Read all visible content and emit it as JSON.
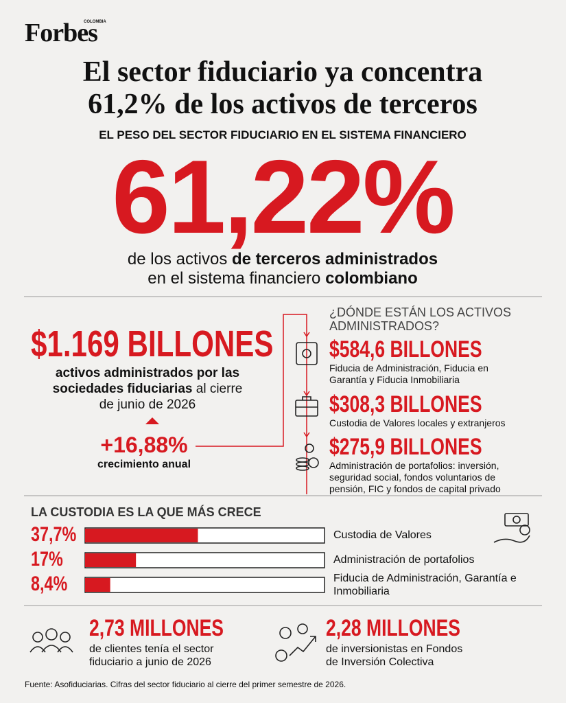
{
  "header": {
    "brand": "Forbes",
    "edition": "COLOMBIA",
    "title_lines": [
      "El sector fiduciario ya concentra",
      "61,2% de los activos de terceros"
    ],
    "subtitle": "EL PESO DEL SECTOR FIDUCIARIO EN EL SISTEMA FINANCIERO"
  },
  "hero": {
    "value_label": "61,22%",
    "lines": [
      [
        {
          "text": "de los activos ",
          "bold": false
        },
        {
          "text": "de terceros administrados",
          "bold": true
        }
      ],
      [
        {
          "text": "en el sistema financiero ",
          "bold": false
        },
        {
          "text": "colombiano",
          "bold": true
        }
      ]
    ]
  },
  "total": {
    "amount": "$1.169 BILLONES",
    "lines": [
      [
        {
          "text": "activos administrados por las",
          "bold": true
        }
      ],
      [
        {
          "text": "sociedades fiduciarias",
          "bold": true
        },
        {
          "text": " al cierre",
          "bold": false
        }
      ],
      [
        {
          "text": "de junio de 2026",
          "bold": false
        }
      ]
    ],
    "growth": "+16,88%",
    "growth_label": "crecimiento anual"
  },
  "breakdown": {
    "heading_lines": [
      "¿DÓNDE ESTÁN LOS ACTIVOS",
      "ADMINISTRADOS?"
    ],
    "items": [
      {
        "amount": "$584,6 BILLONES",
        "lines": [
          "Fiducia de Administración, Fiducia en",
          "Garantía y Fiducia Inmobiliaria"
        ]
      },
      {
        "amount": "$308,3 BILLONES",
        "lines": [
          "Custodia de Valores locales y extranjeros"
        ]
      },
      {
        "amount": "$275,9 BILLONES",
        "lines": [
          "Administración de portafolios: inversión,",
          "seguridad social, fondos voluntarios de",
          "pensión, FIC y fondos de capital privado"
        ]
      }
    ]
  },
  "chart_data": {
    "type": "bar",
    "title": "LA CUSTODIA ES LA QUE MÁS CRECE",
    "categories": [
      "Custodia de Valores",
      "Administración de portafolios",
      "Fiducia de Administración, Garantía e Inmobiliaria"
    ],
    "values": [
      37.7,
      17,
      8.4
    ],
    "value_labels": [
      "37,7%",
      "17%",
      "8,4%"
    ],
    "color": "#d71920",
    "xlim": [
      0,
      80
    ]
  },
  "stats": [
    {
      "value": "2,73 MILLONES",
      "lines": [
        "de clientes tenía el sector",
        "fiduciario a junio de 2026"
      ]
    },
    {
      "value": "2,28 MILLONES",
      "lines": [
        "de inversionistas en Fondos",
        "de Inversión Colectiva"
      ]
    }
  ],
  "footer": "Fuente: Asofiduciarias. Cifras del sector fiduciario al cierre del primer semestre de 2026."
}
